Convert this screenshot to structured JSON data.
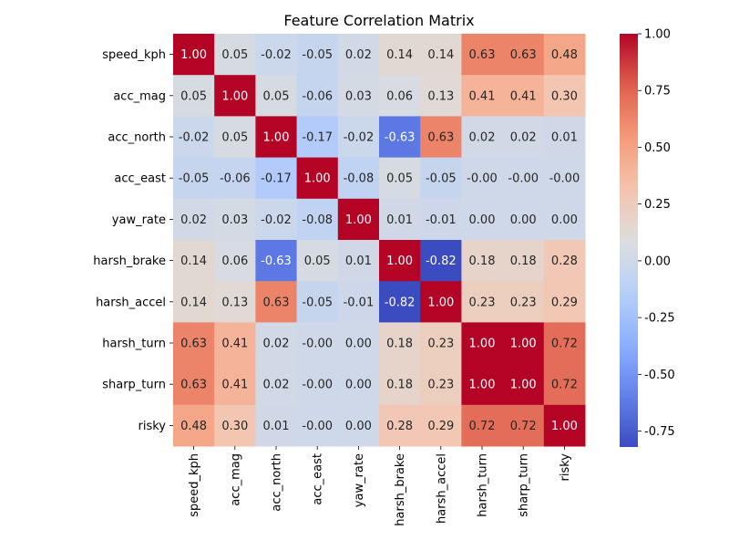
{
  "chart_data": {
    "type": "heatmap",
    "title": "Feature Correlation Matrix",
    "xlabel": "",
    "ylabel": "",
    "labels": [
      "speed_kph",
      "acc_mag",
      "acc_north",
      "acc_east",
      "yaw_rate",
      "harsh_brake",
      "harsh_accel",
      "harsh_turn",
      "sharp_turn",
      "risky"
    ],
    "values": [
      [
        "1.00",
        "0.05",
        "-0.02",
        "-0.05",
        "0.02",
        "0.14",
        "0.14",
        "0.63",
        "0.63",
        "0.48"
      ],
      [
        "0.05",
        "1.00",
        "0.05",
        "-0.06",
        "0.03",
        "0.06",
        "0.13",
        "0.41",
        "0.41",
        "0.30"
      ],
      [
        "-0.02",
        "0.05",
        "1.00",
        "-0.17",
        "-0.02",
        "-0.63",
        "0.63",
        "0.02",
        "0.02",
        "0.01"
      ],
      [
        "-0.05",
        "-0.06",
        "-0.17",
        "1.00",
        "-0.08",
        "0.05",
        "-0.05",
        "-0.00",
        "-0.00",
        "-0.00"
      ],
      [
        "0.02",
        "0.03",
        "-0.02",
        "-0.08",
        "1.00",
        "0.01",
        "-0.01",
        "0.00",
        "0.00",
        "0.00"
      ],
      [
        "0.14",
        "0.06",
        "-0.63",
        "0.05",
        "0.01",
        "1.00",
        "-0.82",
        "0.18",
        "0.18",
        "0.28"
      ],
      [
        "0.14",
        "0.13",
        "0.63",
        "-0.05",
        "-0.01",
        "-0.82",
        "1.00",
        "0.23",
        "0.23",
        "0.29"
      ],
      [
        "0.63",
        "0.41",
        "0.02",
        "-0.00",
        "0.00",
        "0.18",
        "0.23",
        "1.00",
        "1.00",
        "0.72"
      ],
      [
        "0.63",
        "0.41",
        "0.02",
        "-0.00",
        "0.00",
        "0.18",
        "0.23",
        "1.00",
        "1.00",
        "0.72"
      ],
      [
        "0.48",
        "0.30",
        "0.01",
        "-0.00",
        "0.00",
        "0.28",
        "0.29",
        "0.72",
        "0.72",
        "1.00"
      ]
    ],
    "colormap": "coolwarm",
    "colorbar": {
      "vmin": -0.82,
      "vmax": 1.0,
      "ticks": [
        "-0.75",
        "-0.50",
        "-0.25",
        "0.00",
        "0.25",
        "0.50",
        "0.75",
        "1.00"
      ]
    },
    "grid": false,
    "legend": "colorbar-right"
  }
}
